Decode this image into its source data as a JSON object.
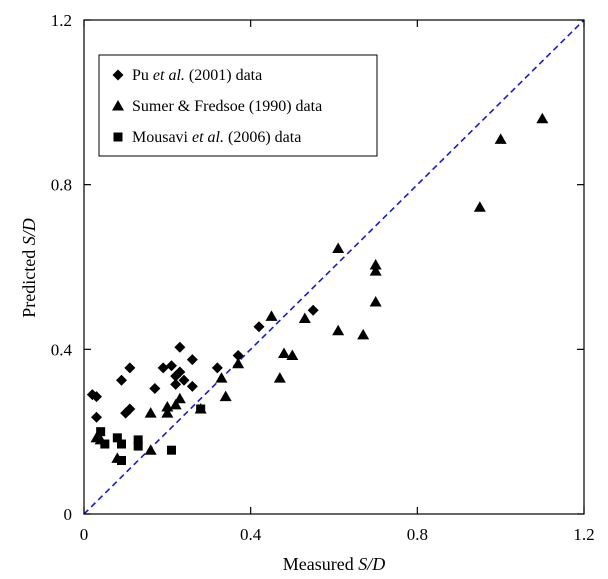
{
  "chart_data": {
    "type": "scatter",
    "xlabel": "Measured S/D",
    "xlabel_plain": "Measured ",
    "xlabel_italic": "S/D",
    "ylabel": "Predicted S/D",
    "ylabel_plain": "Predicted ",
    "ylabel_italic": "S/D",
    "xlim": [
      0,
      1.2
    ],
    "ylim": [
      0,
      1.2
    ],
    "xticks": [
      "0",
      "0.4",
      "0.8",
      "1.2"
    ],
    "yticks": [
      "0",
      "0.4",
      "0.8",
      "1.2"
    ],
    "grid": false,
    "legend_position": "top-left",
    "reference_line": {
      "from": [
        0,
        0
      ],
      "to": [
        1.2,
        1.2
      ],
      "style": "dashed",
      "color": "#1a1acc"
    },
    "series": [
      {
        "name": "Pu et al. (2001) data",
        "legend_parts": [
          "Pu ",
          "et al.",
          " (2001) data"
        ],
        "marker": "diamond",
        "points": [
          [
            0.02,
            0.29
          ],
          [
            0.03,
            0.285
          ],
          [
            0.03,
            0.235
          ],
          [
            0.09,
            0.325
          ],
          [
            0.11,
            0.355
          ],
          [
            0.1,
            0.245
          ],
          [
            0.11,
            0.255
          ],
          [
            0.17,
            0.305
          ],
          [
            0.19,
            0.355
          ],
          [
            0.21,
            0.36
          ],
          [
            0.23,
            0.405
          ],
          [
            0.23,
            0.345
          ],
          [
            0.22,
            0.335
          ],
          [
            0.22,
            0.315
          ],
          [
            0.24,
            0.325
          ],
          [
            0.26,
            0.375
          ],
          [
            0.26,
            0.31
          ],
          [
            0.32,
            0.355
          ],
          [
            0.37,
            0.385
          ],
          [
            0.42,
            0.455
          ],
          [
            0.55,
            0.495
          ]
        ]
      },
      {
        "name": "Sumer & Fredsoe (1990) data",
        "legend_parts": [
          "Sumer & Fredsoe (1990) data"
        ],
        "marker": "triangle",
        "points": [
          [
            0.03,
            0.185
          ],
          [
            0.04,
            0.18
          ],
          [
            0.08,
            0.135
          ],
          [
            0.16,
            0.245
          ],
          [
            0.16,
            0.155
          ],
          [
            0.2,
            0.245
          ],
          [
            0.2,
            0.26
          ],
          [
            0.22,
            0.265
          ],
          [
            0.23,
            0.28
          ],
          [
            0.28,
            0.255
          ],
          [
            0.33,
            0.33
          ],
          [
            0.34,
            0.285
          ],
          [
            0.37,
            0.365
          ],
          [
            0.45,
            0.48
          ],
          [
            0.47,
            0.33
          ],
          [
            0.48,
            0.39
          ],
          [
            0.5,
            0.385
          ],
          [
            0.53,
            0.475
          ],
          [
            0.61,
            0.645
          ],
          [
            0.61,
            0.445
          ],
          [
            0.67,
            0.435
          ],
          [
            0.7,
            0.605
          ],
          [
            0.7,
            0.59
          ],
          [
            0.7,
            0.515
          ],
          [
            0.95,
            0.745
          ],
          [
            1.0,
            0.91
          ],
          [
            1.1,
            0.96
          ]
        ]
      },
      {
        "name": "Mousavi et al. (2006) data",
        "legend_parts": [
          "Mousavi ",
          "et al.",
          " (2006) data"
        ],
        "marker": "square",
        "points": [
          [
            0.04,
            0.2
          ],
          [
            0.05,
            0.17
          ],
          [
            0.08,
            0.185
          ],
          [
            0.09,
            0.17
          ],
          [
            0.09,
            0.13
          ],
          [
            0.13,
            0.18
          ],
          [
            0.13,
            0.165
          ],
          [
            0.21,
            0.155
          ],
          [
            0.28,
            0.255
          ]
        ]
      }
    ]
  }
}
